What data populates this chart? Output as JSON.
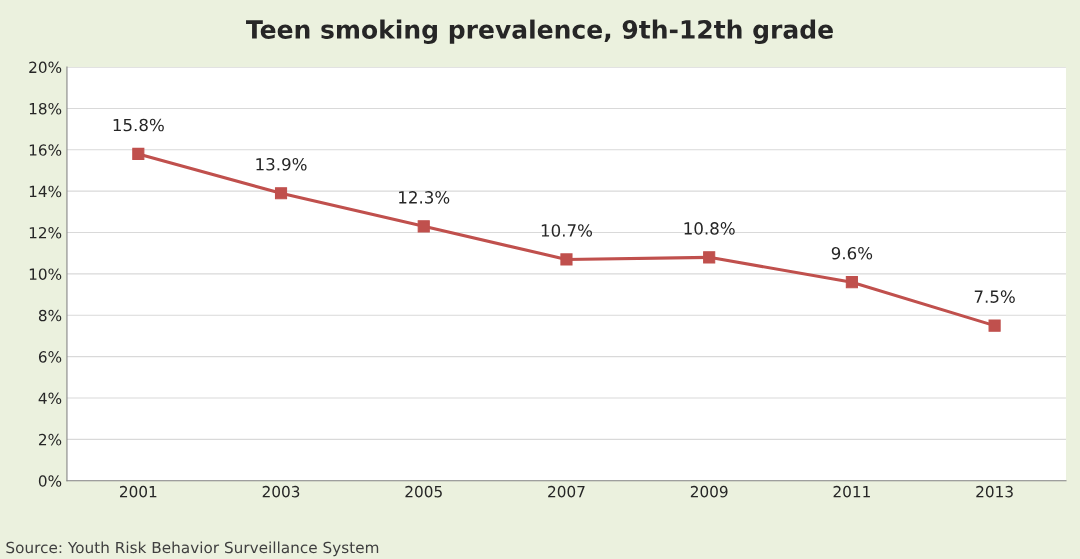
{
  "chart_data": {
    "type": "line",
    "title": "Teen smoking prevalence, 9th-12th grade",
    "categories": [
      "2001",
      "2003",
      "2005",
      "2007",
      "2009",
      "2011",
      "2013"
    ],
    "series": [
      {
        "color": "#c0504d",
        "values": [
          15.8,
          13.9,
          12.3,
          10.7,
          10.8,
          9.6,
          7.5
        ],
        "value_labels": [
          "15.8%",
          "13.9%",
          "12.3%",
          "10.7%",
          "10.8%",
          "9.6%",
          "7.5%"
        ]
      }
    ],
    "ylim": [
      0,
      20
    ],
    "yticks": [
      {
        "value": 0,
        "label": "0%"
      },
      {
        "value": 2,
        "label": "2%"
      },
      {
        "value": 4,
        "label": "4%"
      },
      {
        "value": 6,
        "label": "6%"
      },
      {
        "value": 8,
        "label": "8%"
      },
      {
        "value": 10,
        "label": "10%"
      },
      {
        "value": 12,
        "label": "12%"
      },
      {
        "value": 14,
        "label": "14%"
      },
      {
        "value": 16,
        "label": "16%"
      },
      {
        "value": 18,
        "label": "18%"
      },
      {
        "value": 20,
        "label": "20%"
      }
    ],
    "grid": "y",
    "marker": "square",
    "line_style": "solid",
    "annotations": [
      "Source: Youth Risk Behavior Surveillance System"
    ]
  }
}
